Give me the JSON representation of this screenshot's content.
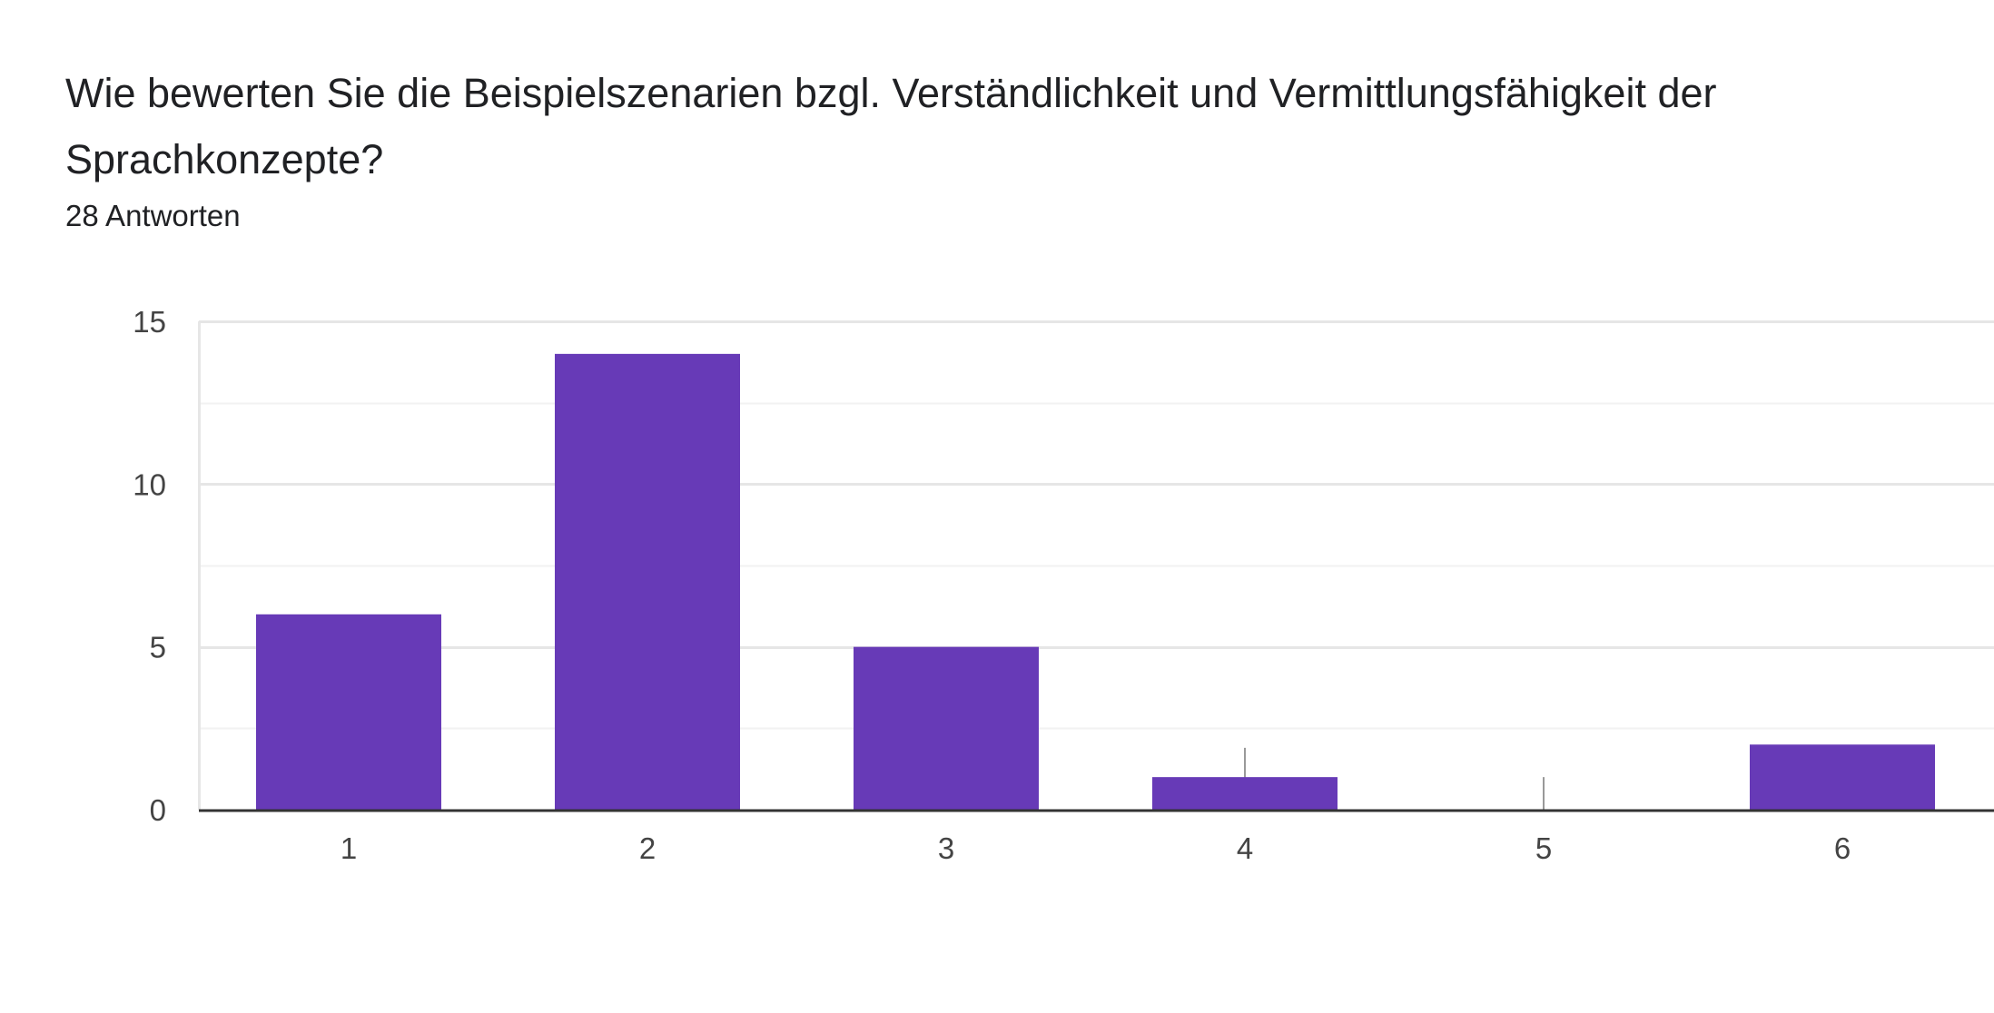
{
  "question": {
    "title": "Wie bewerten Sie die Beispielszenarien bzgl. Verständlichkeit und Vermittlungsfähigkeit der Sprachkonzepte?",
    "response_count": "28 Antworten"
  },
  "colors": {
    "bar": "#673ab7",
    "gridline": "#ebebeb",
    "axis": "#333333",
    "whisker": "#999999",
    "text": "#202124"
  },
  "chart_data": {
    "type": "bar",
    "categories": [
      "1",
      "2",
      "3",
      "4",
      "5",
      "6"
    ],
    "values": [
      6,
      14,
      5,
      1,
      0,
      2
    ],
    "y_ticks": [
      "0",
      "5",
      "10",
      "15"
    ],
    "ylim": [
      0,
      15
    ],
    "grid": true,
    "title": "",
    "xlabel": "",
    "ylabel": ""
  }
}
